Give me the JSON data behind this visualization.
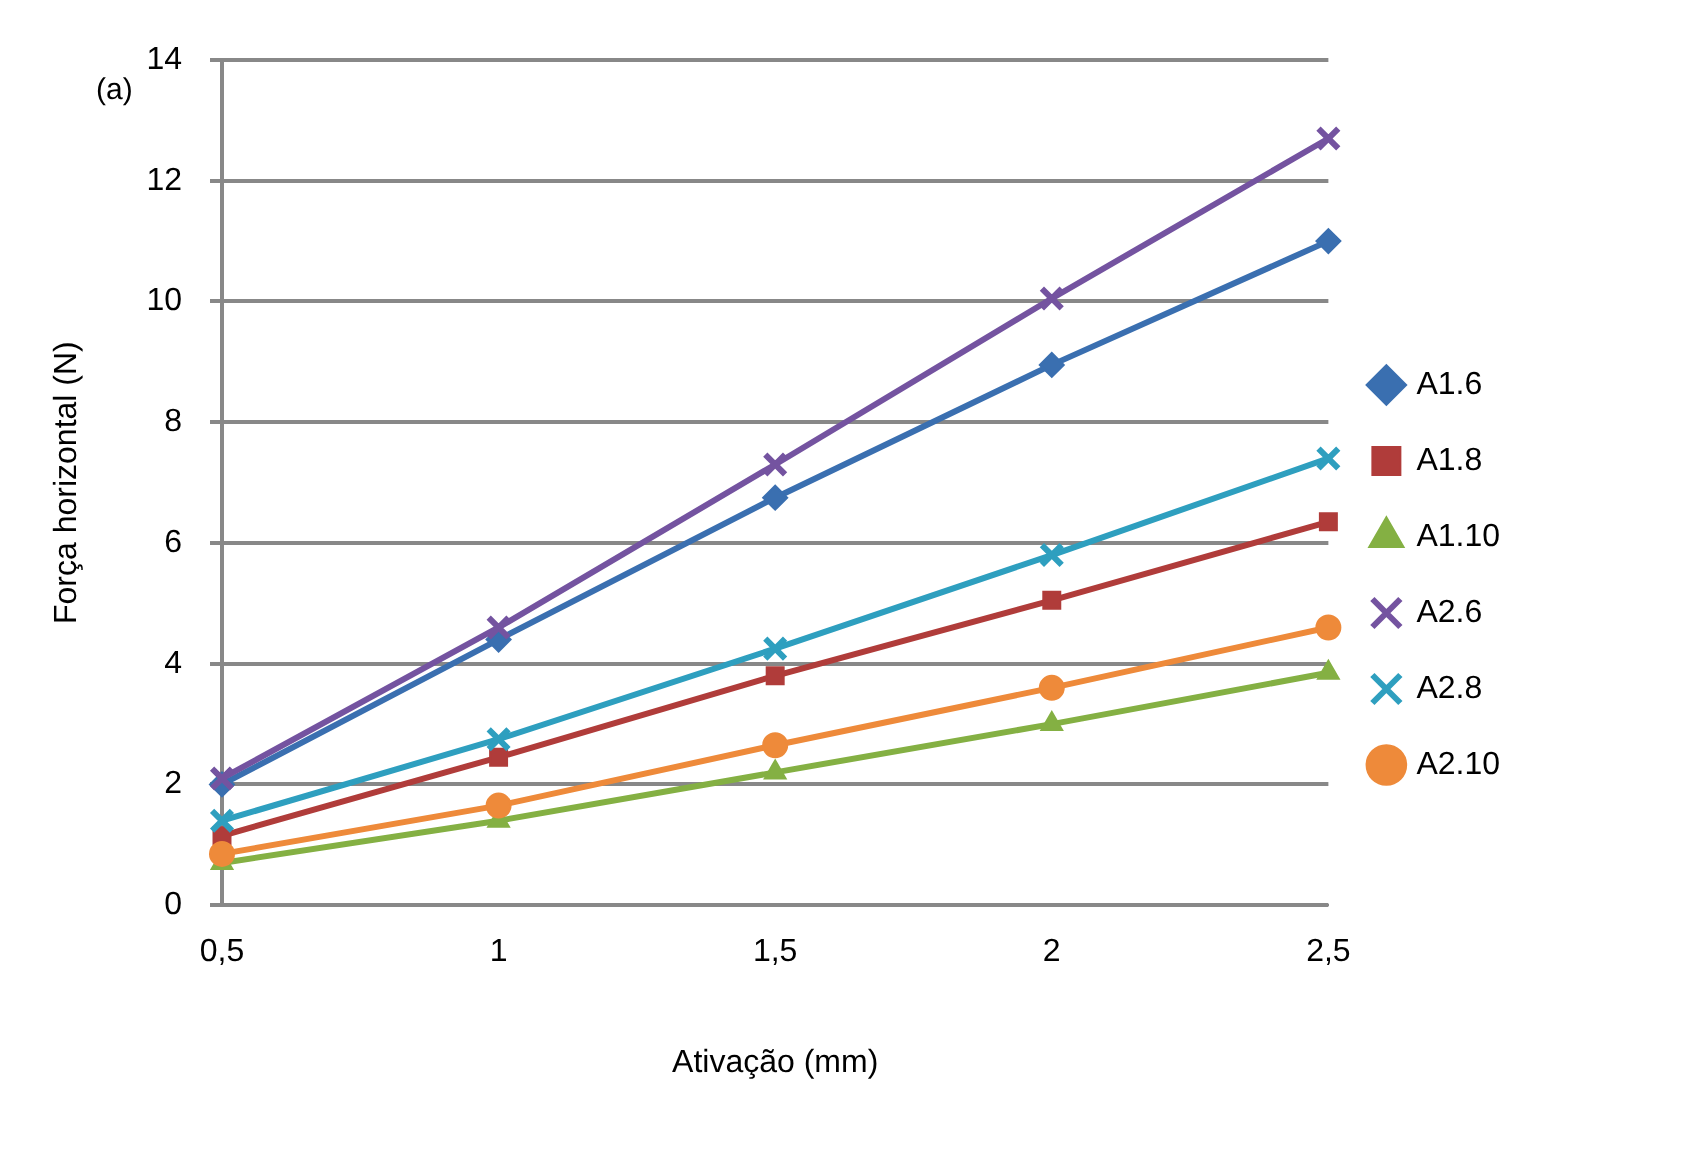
{
  "chart_data": {
    "type": "line",
    "xlabel": "Ativação (mm)",
    "ylabel": "Força horizontal (N)",
    "annotations": [
      "(a)"
    ],
    "categories": [
      "0,5",
      "1",
      "1,5",
      "2",
      "2,5"
    ],
    "ylim": [
      0,
      14
    ],
    "yticks": [
      0,
      2,
      4,
      6,
      8,
      10,
      12,
      14
    ],
    "grid": "y",
    "legend": "right",
    "line_style": "solid",
    "series": [
      {
        "name": "A1.6",
        "color": "#3a6fb0",
        "marker": "diamond",
        "values": [
          2.0,
          4.4,
          6.75,
          8.95,
          11.0
        ]
      },
      {
        "name": "A1.8",
        "color": "#b03c3a",
        "marker": "square",
        "values": [
          1.15,
          2.45,
          3.8,
          5.05,
          6.35
        ]
      },
      {
        "name": "A1.10",
        "color": "#84b043",
        "marker": "triangle",
        "values": [
          0.7,
          1.4,
          2.2,
          3.0,
          3.85
        ]
      },
      {
        "name": "A2.6",
        "color": "#7453a0",
        "marker": "cross",
        "values": [
          2.1,
          4.6,
          7.3,
          10.05,
          12.7
        ]
      },
      {
        "name": "A2.8",
        "color": "#2e9fbf",
        "marker": "cross",
        "values": [
          1.4,
          2.75,
          4.25,
          5.8,
          7.4
        ]
      },
      {
        "name": "A2.10",
        "color": "#ee8a3a",
        "marker": "circle",
        "values": [
          0.85,
          1.65,
          2.65,
          3.6,
          4.6
        ]
      }
    ]
  }
}
